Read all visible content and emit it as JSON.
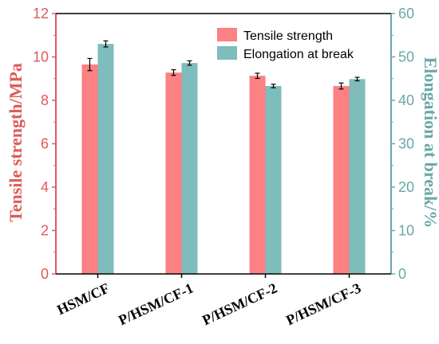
{
  "chart_data": {
    "type": "bar",
    "categories": [
      "HSM/CF",
      "P/HSM/CF-1",
      "P/HSM/CF-2",
      "P/HSM/CF-3"
    ],
    "series": [
      {
        "name": "Tensile strength",
        "axis": "left",
        "color": "#fd8082",
        "values": [
          9.65,
          9.28,
          9.13,
          8.66
        ],
        "errors": [
          0.28,
          0.13,
          0.12,
          0.14
        ]
      },
      {
        "name": "Elongation at break",
        "axis": "right",
        "color": "#7fbcbc",
        "values": [
          53.0,
          48.6,
          43.3,
          44.9
        ],
        "errors": [
          0.7,
          0.5,
          0.4,
          0.4
        ]
      }
    ],
    "ylabel_left": "Tensile strength/MPa",
    "ylabel_right": "Elongation at break/%",
    "ylim_left": [
      0,
      12
    ],
    "ylim_right": [
      0,
      60
    ],
    "yticks_left": [
      0,
      2,
      4,
      6,
      8,
      10,
      12
    ],
    "yticks_right": [
      0,
      10,
      20,
      30,
      40,
      50,
      60
    ],
    "left_axis_color": "#e05a5a",
    "right_axis_color": "#6aa7a8",
    "legend_position": "top-right",
    "grid": false
  }
}
